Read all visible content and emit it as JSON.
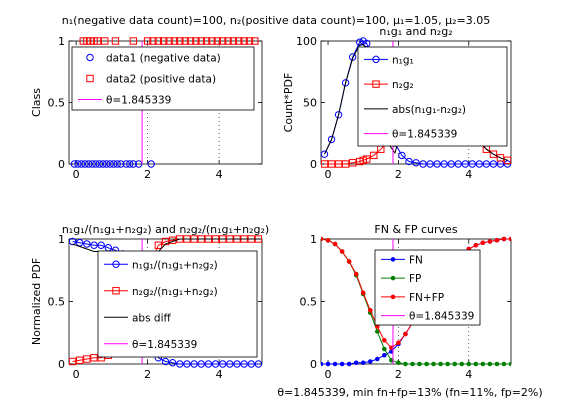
{
  "figure": {
    "suptitle": "n₁(negative data count)=100, n₂(positive data count)=100, μ₁=1.05, μ₂=3.05",
    "footer": "θ=1.845339, min fn+fp=13% (fn=11%, fp=2%)",
    "colors": {
      "blue": "#0000ff",
      "red": "#ff0000",
      "green": "#008000",
      "black": "#000000",
      "magenta": "#ff00ff"
    }
  },
  "chart_data": [
    {
      "id": "p1",
      "type": "scatter",
      "title": "",
      "xlabel": "",
      "ylabel": "Class",
      "xlim": [
        -0.2,
        5.2
      ],
      "ylim": [
        0,
        1
      ],
      "xticks": [
        0,
        2,
        4
      ],
      "yticks": [
        0,
        0.5,
        1
      ],
      "theta": 1.845339,
      "series": [
        {
          "name": "data1 (negative data)",
          "color": "#0000ff",
          "marker": "circle",
          "x": [
            -0.05,
            0.05,
            0.15,
            0.25,
            0.35,
            0.45,
            0.55,
            0.65,
            0.75,
            0.85,
            0.95,
            1.05,
            1.15,
            1.25,
            1.4,
            1.5,
            1.6,
            1.75,
            2.1
          ],
          "y": [
            0,
            0,
            0,
            0,
            0,
            0,
            0,
            0,
            0,
            0,
            0,
            0,
            0,
            0,
            0,
            0,
            0,
            0,
            0
          ]
        },
        {
          "name": "data2 (positive data)",
          "color": "#ff0000",
          "marker": "square",
          "x": [
            0.2,
            0.3,
            0.4,
            0.5,
            0.6,
            0.8,
            1.1,
            1.6,
            2.0,
            2.15,
            2.3,
            2.45,
            2.6,
            2.75,
            2.9,
            3.05,
            3.2,
            3.35,
            3.5,
            3.65,
            3.8,
            3.95,
            4.1,
            4.25,
            4.4,
            4.55,
            4.7,
            4.85,
            5.0
          ],
          "y": [
            1,
            1,
            1,
            1,
            1,
            1,
            1,
            1,
            1,
            1,
            1,
            1,
            1,
            1,
            1,
            1,
            1,
            1,
            1,
            1,
            1,
            1,
            1,
            1,
            1,
            1,
            1,
            1,
            1
          ]
        }
      ],
      "legend": [
        "data1 (negative data)",
        "data2 (positive data)",
        "θ=1.845339"
      ]
    },
    {
      "id": "p2",
      "type": "line",
      "title": "n₁g₁ and n₂g₂",
      "xlabel": "",
      "ylabel": "Count*PDF",
      "xlim": [
        -0.2,
        5.2
      ],
      "ylim": [
        0,
        100
      ],
      "xticks": [
        0,
        2,
        4
      ],
      "yticks": [
        0,
        50,
        100
      ],
      "theta": 1.845339,
      "x": [
        -0.1,
        0.1,
        0.3,
        0.5,
        0.7,
        0.9,
        1.0,
        1.1,
        1.3,
        1.5,
        1.7,
        1.9,
        2.1,
        2.3,
        2.5,
        2.7,
        2.9,
        3.1,
        3.3,
        3.5,
        3.7,
        3.9,
        4.1,
        4.3,
        4.5,
        4.7,
        4.9,
        5.1
      ],
      "series": [
        {
          "name": "n₁g₁",
          "color": "#0000ff",
          "marker": "circle",
          "values": [
            8,
            20,
            40,
            66,
            87,
            99,
            100,
            98,
            84,
            60,
            35,
            17,
            7,
            2,
            1,
            0,
            0,
            0,
            0,
            0,
            0,
            0,
            0,
            0,
            0,
            0,
            0,
            0
          ]
        },
        {
          "name": "n₂g₂",
          "color": "#ff0000",
          "marker": "square",
          "values": [
            0,
            0,
            0,
            0,
            1,
            2,
            3,
            4,
            7,
            12,
            18,
            26,
            35,
            44,
            53,
            58,
            60,
            59,
            56,
            49,
            41,
            33,
            25,
            18,
            12,
            8,
            5,
            3
          ]
        },
        {
          "name": "abs(n₁g₁-n₂g₂)",
          "color": "#000000",
          "marker": "none",
          "values": [
            8,
            20,
            40,
            66,
            86,
            97,
            97,
            94,
            77,
            48,
            17,
            9,
            28,
            42,
            52,
            58,
            60,
            59,
            56,
            49,
            41,
            33,
            25,
            18,
            12,
            8,
            5,
            3
          ]
        }
      ],
      "legend": [
        "n₁g₁",
        "n₂g₂",
        "abs(n₁g₁-n₂g₂)",
        "θ=1.845339"
      ]
    },
    {
      "id": "p3",
      "type": "line",
      "title": "n₁g₁/(n₁g₁+n₂g₂) and n₂g₂/(n₁g₁+n₂g₂)",
      "xlabel": "",
      "ylabel": "Normalized PDF",
      "xlim": [
        -0.2,
        5.2
      ],
      "ylim": [
        0,
        1
      ],
      "xticks": [
        0,
        2,
        4
      ],
      "yticks": [
        0,
        0.5,
        1
      ],
      "theta": 1.845339,
      "x": [
        -0.1,
        0.1,
        0.3,
        0.5,
        0.7,
        0.9,
        1.1,
        1.3,
        1.5,
        1.7,
        1.9,
        2.1,
        2.3,
        2.5,
        2.7,
        2.9,
        3.1,
        3.3,
        3.5,
        3.7,
        3.9,
        4.1,
        4.3,
        4.5,
        4.7,
        4.9,
        5.1
      ],
      "series": [
        {
          "name": "n₁g₁/(n₁g₁+n₂g₂)",
          "color": "#0000ff",
          "marker": "circle",
          "values": [
            0.98,
            0.97,
            0.96,
            0.95,
            0.95,
            0.93,
            0.91,
            0.88,
            0.82,
            0.68,
            0.45,
            0.18,
            0.05,
            0.02,
            0.01,
            0,
            0,
            0,
            0,
            0,
            0,
            0,
            0,
            0,
            0,
            0,
            0
          ]
        },
        {
          "name": "n₂g₂/(n₁g₁+n₂g₂)",
          "color": "#ff0000",
          "marker": "square",
          "values": [
            0.02,
            0.03,
            0.04,
            0.05,
            0.05,
            0.07,
            0.09,
            0.12,
            0.18,
            0.32,
            0.55,
            0.82,
            0.95,
            0.98,
            0.99,
            1,
            1,
            1,
            1,
            1,
            1,
            1,
            1,
            1,
            1,
            1,
            1
          ]
        },
        {
          "name": "abs diff",
          "color": "#000000",
          "marker": "none",
          "values": [
            0.96,
            0.94,
            0.92,
            0.9,
            0.9,
            0.86,
            0.82,
            0.76,
            0.64,
            0.36,
            0.1,
            0.64,
            0.9,
            0.96,
            0.98,
            1,
            1,
            1,
            1,
            1,
            1,
            1,
            1,
            1,
            1,
            1,
            1
          ]
        }
      ],
      "legend": [
        "n₁g₁/(n₁g₁+n₂g₂)",
        "n₂g₂/(n₁g₁+n₂g₂)",
        "abs diff",
        "θ=1.845339"
      ]
    },
    {
      "id": "p4",
      "type": "line",
      "title": "FN & FP curves",
      "xlabel": "",
      "ylabel": "",
      "xlim": [
        -0.2,
        5.2
      ],
      "ylim": [
        0,
        1
      ],
      "xticks": [
        0,
        2,
        4
      ],
      "yticks": [
        0,
        0.5,
        1
      ],
      "theta": 1.845339,
      "x": [
        -0.2,
        0.0,
        0.2,
        0.4,
        0.6,
        0.8,
        1.0,
        1.2,
        1.4,
        1.6,
        1.8,
        2.0,
        2.2,
        2.4,
        2.6,
        2.8,
        3.0,
        3.2,
        3.4,
        3.6,
        3.8,
        4.0,
        4.2,
        4.4,
        4.6,
        4.8,
        5.0,
        5.2
      ],
      "series": [
        {
          "name": "FN",
          "color": "#0000ff",
          "marker": "dot",
          "values": [
            0,
            0,
            0,
            0,
            0,
            0.01,
            0.01,
            0.02,
            0.04,
            0.07,
            0.1,
            0.16,
            0.24,
            0.33,
            0.44,
            0.54,
            0.63,
            0.71,
            0.78,
            0.84,
            0.88,
            0.92,
            0.95,
            0.97,
            0.98,
            0.99,
            1,
            1
          ]
        },
        {
          "name": "FP",
          "color": "#008000",
          "marker": "dot",
          "values": [
            1,
            0.99,
            0.96,
            0.9,
            0.82,
            0.71,
            0.56,
            0.41,
            0.26,
            0.12,
            0.03,
            0.01,
            0,
            0,
            0,
            0,
            0,
            0,
            0,
            0,
            0,
            0,
            0,
            0,
            0,
            0,
            0,
            0
          ]
        },
        {
          "name": "FN+FP",
          "color": "#ff0000",
          "marker": "dot",
          "values": [
            1,
            0.99,
            0.96,
            0.9,
            0.82,
            0.72,
            0.57,
            0.43,
            0.3,
            0.19,
            0.13,
            0.17,
            0.24,
            0.33,
            0.44,
            0.54,
            0.63,
            0.71,
            0.78,
            0.84,
            0.88,
            0.92,
            0.95,
            0.97,
            0.98,
            0.99,
            1,
            1
          ]
        }
      ],
      "legend": [
        "FN",
        "FP",
        "FN+FP",
        "θ=1.845339"
      ]
    }
  ]
}
